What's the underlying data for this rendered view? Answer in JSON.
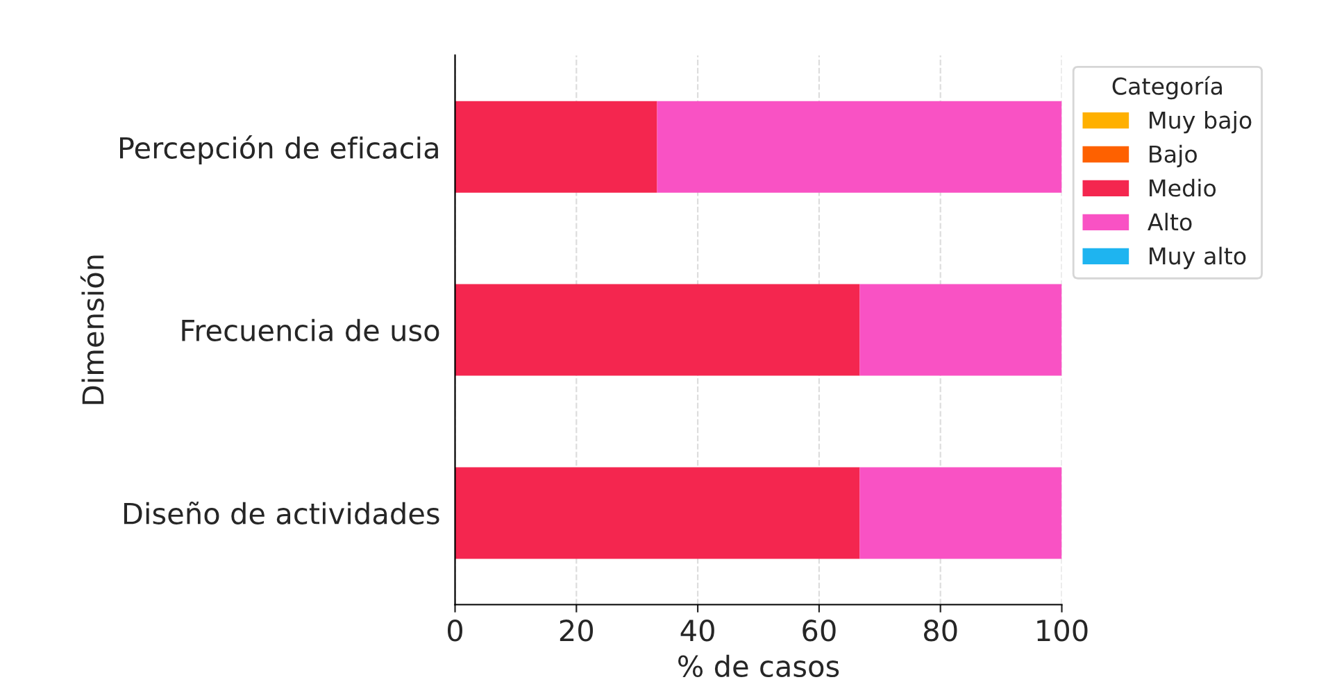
{
  "chart_data": {
    "type": "bar",
    "orientation": "horizontal",
    "stacked": true,
    "categories": [
      "Percepción de eficacia",
      "Frecuencia de uso",
      "Diseño de actividades"
    ],
    "series": [
      {
        "name": "Muy bajo",
        "color": "#ffb000",
        "values": [
          0,
          0,
          0
        ]
      },
      {
        "name": "Bajo",
        "color": "#fe6100",
        "values": [
          0,
          0,
          0
        ]
      },
      {
        "name": "Medio",
        "color": "#f4264f",
        "values": [
          33.3,
          66.7,
          66.7
        ]
      },
      {
        "name": "Alto",
        "color": "#f952c4",
        "values": [
          66.7,
          33.3,
          33.3
        ]
      },
      {
        "name": "Muy alto",
        "color": "#1eb4f0",
        "values": [
          0,
          0,
          0
        ]
      }
    ],
    "xlabel": "% de casos",
    "ylabel": "Dimensión",
    "legend_title": "Categoría",
    "xlim": [
      0,
      100
    ],
    "xticks": [
      0,
      20,
      40,
      60,
      80,
      100
    ],
    "grid": "x",
    "legend": "top right"
  }
}
